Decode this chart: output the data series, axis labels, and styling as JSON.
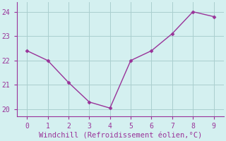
{
  "x": [
    0,
    1,
    2,
    3,
    4,
    5,
    6,
    7,
    8,
    9
  ],
  "y": [
    22.4,
    22.0,
    21.1,
    20.3,
    20.05,
    22.0,
    22.4,
    23.1,
    24.0,
    23.8
  ],
  "line_color": "#993399",
  "marker": "D",
  "marker_size": 2.5,
  "line_width": 1.0,
  "xlabel": "Windchill (Refroidissement éolien,°C)",
  "xlim": [
    -0.5,
    9.5
  ],
  "ylim": [
    19.7,
    24.4
  ],
  "xticks": [
    0,
    1,
    2,
    3,
    4,
    5,
    6,
    7,
    8,
    9
  ],
  "yticks": [
    20,
    21,
    22,
    23,
    24
  ],
  "background_color": "#d4f0f0",
  "grid_color": "#aacece",
  "xlabel_fontsize": 7.5,
  "tick_fontsize": 7,
  "tick_color": "#993399",
  "xlabel_color": "#993399",
  "spine_color": "#993399"
}
